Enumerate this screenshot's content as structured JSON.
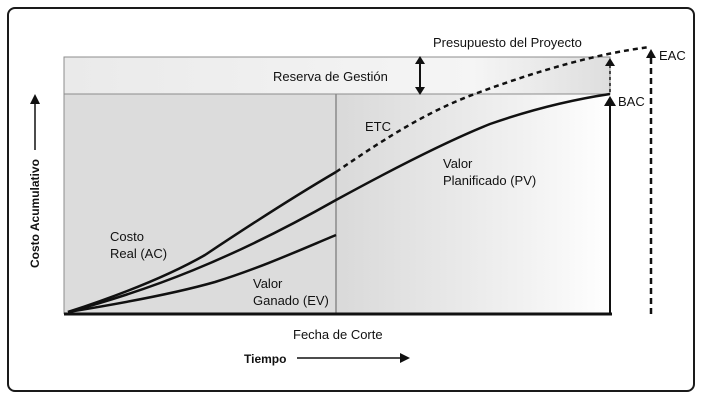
{
  "diagram": {
    "project_budget_label": "Presupuesto del Proyecto",
    "management_reserve_label": "Reserva de Gestión",
    "etc_label": "ETC",
    "bac_label": "BAC",
    "eac_label": "EAC",
    "pv_label": {
      "line1": "Valor",
      "line2": "Planificado (PV)"
    },
    "ac_label": {
      "line1": "Costo",
      "line2": "Real (AC)"
    },
    "ev_label": {
      "line1": "Valor",
      "line2": "Ganado (EV)"
    },
    "status_date_label": "Fecha de Corte",
    "x_axis_label": "Tiempo",
    "y_axis_label": "Costo Acumulativo"
  },
  "colors": {
    "line": "#111111",
    "reserve_fill": "#e9e9e9",
    "area_fill": "#dddddd",
    "status_line": "#8a8a8a"
  }
}
